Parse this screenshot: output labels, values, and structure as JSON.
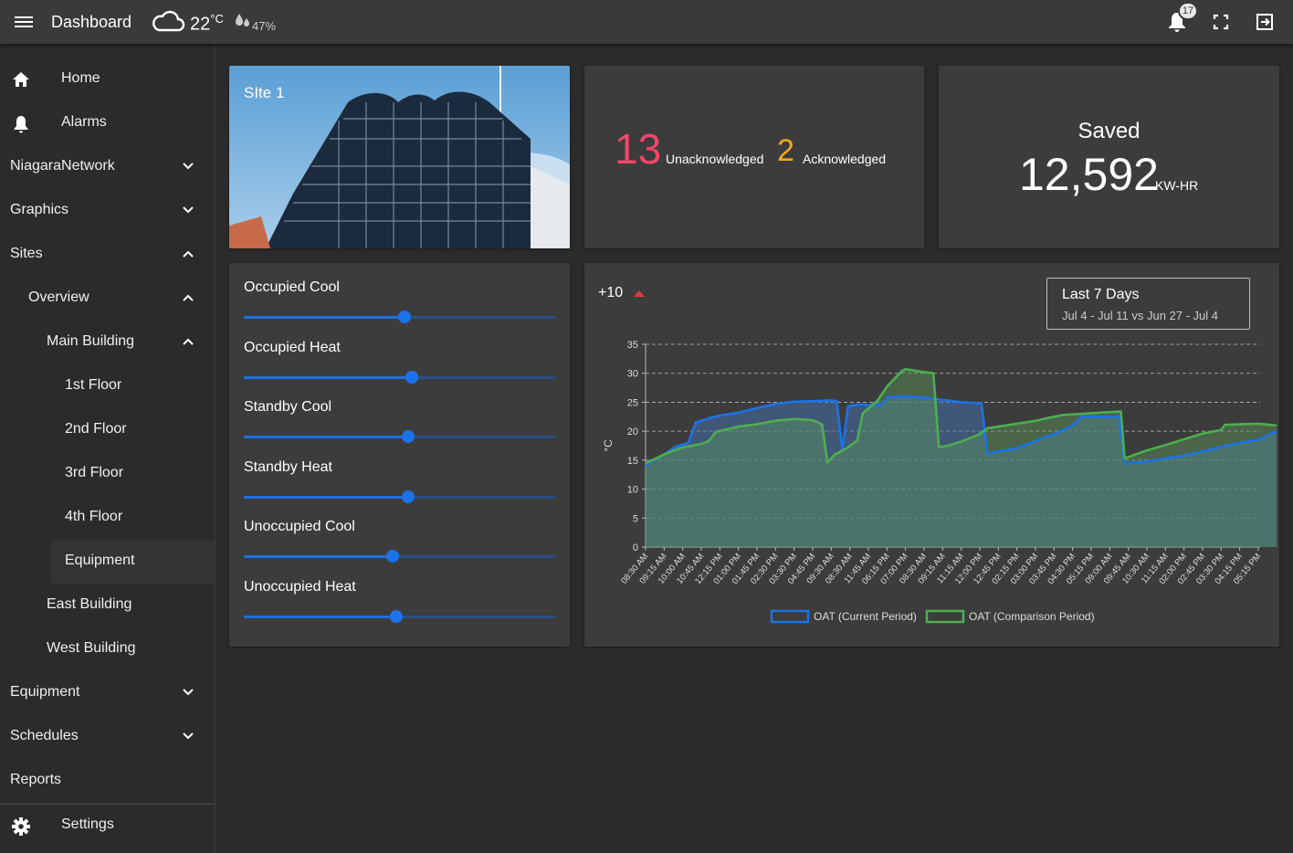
{
  "header": {
    "title": "Dashboard",
    "temperature": "22",
    "temp_unit": "°C",
    "humidity": "47%",
    "notification_count": "17",
    "icons": [
      "menu-icon",
      "cloud-icon",
      "humidity-icon",
      "bell-icon",
      "fullscreen-icon",
      "logout-icon"
    ]
  },
  "sidebar": {
    "items": [
      {
        "label": "Home",
        "icon": "home-icon"
      },
      {
        "label": "Alarms",
        "icon": "bell-icon"
      },
      {
        "label": "NiagaraNetwork",
        "chevron": "down"
      },
      {
        "label": "Graphics",
        "chevron": "down"
      },
      {
        "label": "Sites",
        "chevron": "up"
      },
      {
        "label": "Overview",
        "chevron": "up"
      },
      {
        "label": "Main Building",
        "chevron": "up"
      },
      {
        "label": "1st Floor"
      },
      {
        "label": "2nd Floor"
      },
      {
        "label": "3rd Floor"
      },
      {
        "label": "4th Floor"
      },
      {
        "label": "Equipment"
      },
      {
        "label": "East Building"
      },
      {
        "label": "West Building"
      },
      {
        "label": "Equipment",
        "chevron": "down"
      },
      {
        "label": "Schedules",
        "chevron": "down"
      },
      {
        "label": "Reports"
      },
      {
        "label": "Settings",
        "icon": "gear-icon"
      }
    ],
    "active": "Equipment"
  },
  "site": {
    "label": "SIte 1"
  },
  "alarms": {
    "unacknowledged_count": "13",
    "unacknowledged_label": "Unacknowledged",
    "acknowledged_count": "2",
    "acknowledged_label": "Acknowledged",
    "colors": {
      "unacknowledged": "#f0476a",
      "acknowledged": "#f5a623"
    }
  },
  "saved": {
    "title": "Saved",
    "value": "12,592",
    "unit": "KW-HR"
  },
  "setpoints": [
    {
      "label": "Occupied Cool",
      "level": 0.515
    },
    {
      "label": "Occupied Heat",
      "level": 0.54
    },
    {
      "label": "Standby Cool",
      "level": 0.528
    },
    {
      "label": "Standby Heat",
      "level": 0.528
    },
    {
      "label": "Unoccupied Cool",
      "level": 0.478
    },
    {
      "label": "Unoccupied Heat",
      "level": 0.49
    }
  ],
  "chart_header": {
    "delta": "+10",
    "range_title": "Last 7 Days",
    "range_sub": "Jul 4 - Jul 11 vs Jun 27 - Jul 4"
  },
  "chart_data": {
    "type": "area",
    "ylabel": "°C",
    "ylim": [
      0,
      35
    ],
    "yticks": [
      0,
      5,
      10,
      15,
      20,
      25,
      30,
      35
    ],
    "grid": true,
    "legend_position": "bottom",
    "categories": [
      "08:30 AM",
      "09:15 AM",
      "10:00 AM",
      "10:45 AM",
      "12:15 PM",
      "01:00 PM",
      "01:45 PM",
      "02:30 PM",
      "03:30 PM",
      "04:45 PM",
      "09:30 AM",
      "08:30 AM",
      "11:45 AM",
      "06:15 PM",
      "07:00 PM",
      "08:30 AM",
      "09:15 AM",
      "11:15 AM",
      "12:00 PM",
      "12:45 PM",
      "02:15 PM",
      "03:00 PM",
      "03:45 PM",
      "04:30 PM",
      "05:15 PM",
      "09:00 AM",
      "09:45 AM",
      "10:30 AM",
      "11:15 AM",
      "02:00 PM",
      "02:45 PM",
      "03:30 PM",
      "04:15 PM",
      "05:15 PM"
    ],
    "series": [
      {
        "name": "OAT (Current Period)",
        "color": "#1a73e8",
        "points": [
          [
            0,
            14
          ],
          [
            0.5,
            15.2
          ],
          [
            1,
            16
          ],
          [
            1.6,
            17.3
          ],
          [
            2.3,
            18
          ],
          [
            2.7,
            21.5
          ],
          [
            3.4,
            22.2
          ],
          [
            4,
            22.7
          ],
          [
            5,
            23.2
          ],
          [
            6,
            24
          ],
          [
            7,
            24.7
          ],
          [
            8,
            25.1
          ],
          [
            9,
            25.2
          ],
          [
            10,
            25.3
          ],
          [
            10.3,
            25.2
          ],
          [
            10.6,
            16.8
          ],
          [
            10.9,
            24.3
          ],
          [
            11.5,
            24.6
          ],
          [
            12,
            24.5
          ],
          [
            12.7,
            24.6
          ],
          [
            13.1,
            25.9
          ],
          [
            14,
            26
          ],
          [
            15,
            25.8
          ],
          [
            16,
            25.4
          ],
          [
            17,
            25
          ],
          [
            18.1,
            24.8
          ],
          [
            18.4,
            16.2
          ],
          [
            19,
            16.5
          ],
          [
            20,
            17.1
          ],
          [
            21,
            18.3
          ],
          [
            22,
            19.5
          ],
          [
            23,
            21
          ],
          [
            23.5,
            22.5
          ],
          [
            24,
            22.5
          ],
          [
            25,
            22.5
          ],
          [
            25.5,
            22.6
          ],
          [
            25.8,
            14.4
          ],
          [
            27,
            14.8
          ],
          [
            28,
            15.3
          ],
          [
            29,
            15.8
          ],
          [
            30,
            16.5
          ],
          [
            31,
            17.3
          ],
          [
            32,
            18
          ],
          [
            33,
            18.5
          ],
          [
            33.5,
            19.3
          ],
          [
            34,
            20
          ]
        ]
      },
      {
        "name": "OAT (Comparison Period)",
        "color": "#4caf50",
        "points": [
          [
            0,
            14.5
          ],
          [
            0.5,
            15.2
          ],
          [
            1,
            16
          ],
          [
            2,
            17.2
          ],
          [
            3,
            17.8
          ],
          [
            3.4,
            18.3
          ],
          [
            3.8,
            19.9
          ],
          [
            4.5,
            20.4
          ],
          [
            5,
            20.8
          ],
          [
            6,
            21.2
          ],
          [
            7,
            21.8
          ],
          [
            8,
            22.1
          ],
          [
            9,
            21.9
          ],
          [
            9.5,
            21.2
          ],
          [
            9.8,
            14.6
          ],
          [
            10.2,
            16
          ],
          [
            10.8,
            17
          ],
          [
            11.4,
            18.4
          ],
          [
            11.7,
            23.1
          ],
          [
            12.5,
            25.3
          ],
          [
            13,
            27.7
          ],
          [
            13.8,
            30.4
          ],
          [
            14,
            30.7
          ],
          [
            15,
            30.2
          ],
          [
            15.5,
            30
          ],
          [
            15.8,
            17.2
          ],
          [
            16.4,
            17.6
          ],
          [
            17,
            18.2
          ],
          [
            18,
            19.5
          ],
          [
            18.4,
            20.5
          ],
          [
            19,
            20.8
          ],
          [
            20,
            21.3
          ],
          [
            21,
            21.8
          ],
          [
            22,
            22.5
          ],
          [
            22.5,
            22.8
          ],
          [
            23,
            22.9
          ],
          [
            24,
            23.1
          ],
          [
            25,
            23.3
          ],
          [
            25.6,
            23.4
          ],
          [
            25.8,
            15.3
          ],
          [
            27,
            16.7
          ],
          [
            28,
            17.6
          ],
          [
            29,
            18.6
          ],
          [
            30,
            19.6
          ],
          [
            31,
            20.2
          ],
          [
            31.2,
            21.1
          ],
          [
            32,
            21.2
          ],
          [
            33,
            21.3
          ],
          [
            34,
            21
          ]
        ]
      }
    ]
  }
}
